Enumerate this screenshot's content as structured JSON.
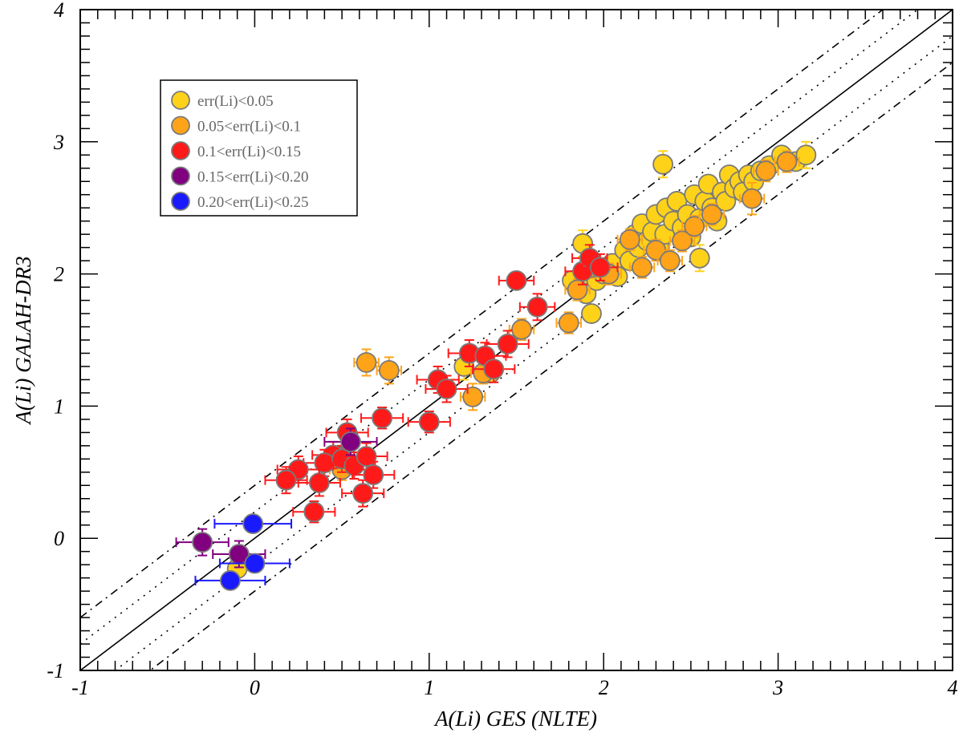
{
  "chart_data": {
    "type": "scatter",
    "title": "",
    "xlabel": "A(Li) GES (NLTE)",
    "ylabel": "A(Li) GALAH-DR3",
    "xlim": [
      -1,
      4
    ],
    "ylim": [
      -1,
      4
    ],
    "x_ticks": [
      "-1",
      "0",
      "1",
      "2",
      "3",
      "4"
    ],
    "y_ticks": [
      "-1",
      "0",
      "1",
      "2",
      "3",
      "4"
    ],
    "grid": false,
    "legend_position": "upper-left",
    "colors": {
      "c1": "#FFD21A",
      "c2": "#FFA319",
      "c3": "#FF1A1A",
      "c4": "#800080",
      "c5": "#1A1AFF",
      "marker_edge": "#7a7a7a"
    },
    "legend": [
      {
        "key": "c1",
        "label": "err(Li)<0.05"
      },
      {
        "key": "c2",
        "label": "0.05<err(Li)<0.1"
      },
      {
        "key": "c3",
        "label": "0.1<err(Li)<0.15"
      },
      {
        "key": "c4",
        "label": "0.15<err(Li)<0.20"
      },
      {
        "key": "c5",
        "label": "0.20<err(Li)<0.25"
      }
    ],
    "reference_lines": [
      {
        "style": "solid",
        "offset": 0
      },
      {
        "style": "dotted",
        "offset": 0.2
      },
      {
        "style": "dotted",
        "offset": -0.2
      },
      {
        "style": "dash-dot",
        "offset": 0.4
      },
      {
        "style": "dash-dot",
        "offset": -0.4
      }
    ],
    "series": [
      {
        "key": "c1",
        "points": [
          [
            1.82,
            1.95,
            0.05,
            0.05
          ],
          [
            1.87,
            1.9,
            0.05,
            0.05
          ],
          [
            1.9,
            1.85,
            0.05,
            0.05
          ],
          [
            1.88,
            2.23,
            0.05,
            0.1
          ],
          [
            1.93,
            1.7,
            0.05,
            0.05
          ],
          [
            1.96,
            1.95,
            0.05,
            0.05
          ],
          [
            2.0,
            2.0,
            0.05,
            0.05
          ],
          [
            2.05,
            2.08,
            0.05,
            0.05
          ],
          [
            2.08,
            1.98,
            0.05,
            0.05
          ],
          [
            2.12,
            2.18,
            0.05,
            0.05
          ],
          [
            2.15,
            2.1,
            0.05,
            0.05
          ],
          [
            2.18,
            2.3,
            0.05,
            0.05
          ],
          [
            2.2,
            2.2,
            0.05,
            0.05
          ],
          [
            2.22,
            2.38,
            0.05,
            0.05
          ],
          [
            2.25,
            2.25,
            0.05,
            0.05
          ],
          [
            2.28,
            2.32,
            0.05,
            0.05
          ],
          [
            2.3,
            2.45,
            0.05,
            0.05
          ],
          [
            2.32,
            2.2,
            0.05,
            0.05
          ],
          [
            2.35,
            2.3,
            0.05,
            0.05
          ],
          [
            2.36,
            2.5,
            0.05,
            0.05
          ],
          [
            2.4,
            2.4,
            0.05,
            0.05
          ],
          [
            2.42,
            2.55,
            0.05,
            0.05
          ],
          [
            2.45,
            2.35,
            0.05,
            0.05
          ],
          [
            2.48,
            2.45,
            0.05,
            0.05
          ],
          [
            2.5,
            2.28,
            0.05,
            0.05
          ],
          [
            2.52,
            2.6,
            0.05,
            0.05
          ],
          [
            2.55,
            2.42,
            0.05,
            0.05
          ],
          [
            2.58,
            2.55,
            0.05,
            0.05
          ],
          [
            2.6,
            2.68,
            0.05,
            0.05
          ],
          [
            2.62,
            2.5,
            0.05,
            0.05
          ],
          [
            2.65,
            2.4,
            0.05,
            0.05
          ],
          [
            2.68,
            2.62,
            0.05,
            0.05
          ],
          [
            2.7,
            2.55,
            0.05,
            0.05
          ],
          [
            2.72,
            2.75,
            0.05,
            0.05
          ],
          [
            2.75,
            2.65,
            0.05,
            0.05
          ],
          [
            2.78,
            2.7,
            0.05,
            0.05
          ],
          [
            2.8,
            2.62,
            0.05,
            0.05
          ],
          [
            2.83,
            2.75,
            0.05,
            0.05
          ],
          [
            2.86,
            2.7,
            0.05,
            0.05
          ],
          [
            2.9,
            2.78,
            0.05,
            0.05
          ],
          [
            2.95,
            2.82,
            0.05,
            0.05
          ],
          [
            3.02,
            2.9,
            0.05,
            0.05
          ],
          [
            3.1,
            2.85,
            0.05,
            0.05
          ],
          [
            3.16,
            2.9,
            0.05,
            0.1
          ],
          [
            2.55,
            2.12,
            0.05,
            0.1
          ],
          [
            2.34,
            2.83,
            0.05,
            0.1
          ],
          [
            -0.1,
            -0.23,
            0.05,
            0.05
          ],
          [
            1.2,
            1.3,
            0.05,
            0.1
          ],
          [
            1.35,
            1.25,
            0.05,
            0.05
          ]
        ]
      },
      {
        "key": "c2",
        "points": [
          [
            0.64,
            1.33,
            0.07,
            0.1
          ],
          [
            0.77,
            1.27,
            0.07,
            0.1
          ],
          [
            1.25,
            1.07,
            0.07,
            0.1
          ],
          [
            1.31,
            1.25,
            0.07,
            0.08
          ],
          [
            1.53,
            1.58,
            0.07,
            0.08
          ],
          [
            1.8,
            1.63,
            0.07,
            0.08
          ],
          [
            1.85,
            1.88,
            0.07,
            0.08
          ],
          [
            1.93,
            2.05,
            0.07,
            0.08
          ],
          [
            2.03,
            2.0,
            0.07,
            0.08
          ],
          [
            2.15,
            2.26,
            0.07,
            0.08
          ],
          [
            2.22,
            2.05,
            0.07,
            0.08
          ],
          [
            2.3,
            2.18,
            0.07,
            0.08
          ],
          [
            2.38,
            2.1,
            0.07,
            0.08
          ],
          [
            2.45,
            2.25,
            0.07,
            0.08
          ],
          [
            2.52,
            2.36,
            0.07,
            0.08
          ],
          [
            2.62,
            2.45,
            0.07,
            0.08
          ],
          [
            2.85,
            2.57,
            0.07,
            0.12
          ],
          [
            2.93,
            2.78,
            0.07,
            0.08
          ],
          [
            3.05,
            2.85,
            0.07,
            0.08
          ],
          [
            0.5,
            0.52,
            0.07,
            0.08
          ]
        ]
      },
      {
        "key": "c3",
        "points": [
          [
            1.5,
            1.95,
            0.1,
            0.05
          ],
          [
            1.62,
            1.75,
            0.1,
            0.1
          ],
          [
            1.88,
            2.02,
            0.1,
            0.1
          ],
          [
            1.92,
            2.12,
            0.1,
            0.1
          ],
          [
            1.98,
            2.05,
            0.1,
            0.1
          ],
          [
            1.45,
            1.47,
            0.12,
            0.1
          ],
          [
            1.23,
            1.4,
            0.12,
            0.1
          ],
          [
            1.32,
            1.38,
            0.12,
            0.1
          ],
          [
            1.37,
            1.28,
            0.12,
            0.1
          ],
          [
            1.05,
            1.2,
            0.12,
            0.1
          ],
          [
            1.1,
            1.13,
            0.12,
            0.1
          ],
          [
            1.0,
            0.88,
            0.12,
            0.08
          ],
          [
            0.73,
            0.91,
            0.12,
            0.08
          ],
          [
            0.53,
            0.8,
            0.12,
            0.1
          ],
          [
            0.45,
            0.63,
            0.12,
            0.1
          ],
          [
            0.4,
            0.57,
            0.12,
            0.1
          ],
          [
            0.5,
            0.6,
            0.12,
            0.1
          ],
          [
            0.57,
            0.55,
            0.12,
            0.1
          ],
          [
            0.64,
            0.62,
            0.12,
            0.1
          ],
          [
            0.68,
            0.48,
            0.12,
            0.1
          ],
          [
            0.37,
            0.42,
            0.12,
            0.1
          ],
          [
            0.25,
            0.52,
            0.12,
            0.1
          ],
          [
            0.18,
            0.44,
            0.12,
            0.1
          ],
          [
            0.62,
            0.34,
            0.12,
            0.1
          ],
          [
            0.34,
            0.2,
            0.12,
            0.08
          ]
        ]
      },
      {
        "key": "c4",
        "points": [
          [
            0.55,
            0.73,
            0.15,
            0.1
          ],
          [
            -0.3,
            -0.03,
            0.15,
            0.1
          ],
          [
            -0.09,
            -0.12,
            0.15,
            0.1
          ]
        ]
      },
      {
        "key": "c5",
        "points": [
          [
            -0.01,
            0.11,
            0.22,
            0.05
          ],
          [
            0.0,
            -0.19,
            0.2,
            0.05
          ],
          [
            -0.14,
            -0.32,
            0.2,
            0.05
          ]
        ]
      }
    ]
  }
}
